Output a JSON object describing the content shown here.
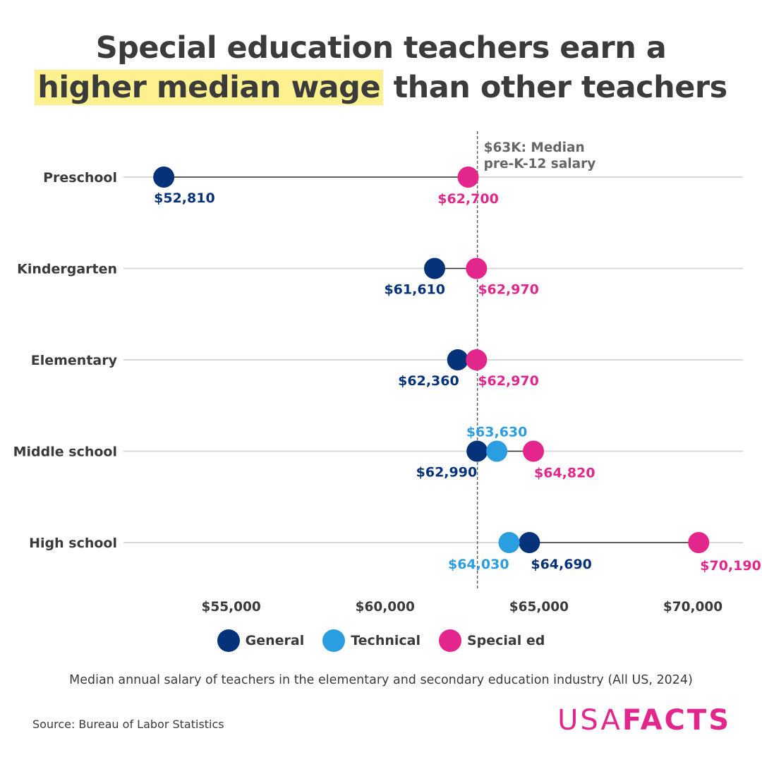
{
  "title": {
    "line1": "Special education teachers earn a",
    "highlight": "higher median wage",
    "rest": " than other teachers"
  },
  "colors": {
    "general": "#06327a",
    "technical": "#2a9ee0",
    "special": "#e2268b",
    "highlight": "#fdf08e"
  },
  "chart_data": {
    "type": "dumbbell",
    "categories": [
      "Preschool",
      "Kindergarten",
      "Elementary",
      "Middle school",
      "High school"
    ],
    "series": [
      {
        "name": "General",
        "values": [
          52810,
          61610,
          62360,
          62990,
          64690
        ]
      },
      {
        "name": "Technical",
        "values": [
          null,
          null,
          null,
          63630,
          64030
        ]
      },
      {
        "name": "Special ed",
        "values": [
          62700,
          62970,
          62970,
          64820,
          70190
        ]
      }
    ],
    "value_labels": {
      "General": [
        "$52,810",
        "$61,610",
        "$62,360",
        "$62,990",
        "$64,690"
      ],
      "Technical": [
        null,
        null,
        null,
        "$63,630",
        "$64,030"
      ],
      "Special ed": [
        "$62,700",
        "$62,970",
        "$62,970",
        "$64,820",
        "$70,190"
      ]
    },
    "x_ticks": [
      55000,
      60000,
      65000,
      70000
    ],
    "x_tick_labels": [
      "$55,000",
      "$60,000",
      "$65,000",
      "$70,000"
    ],
    "xlim": [
      51500,
      72000
    ],
    "reference_line": {
      "value": 63000,
      "label_line1": "$63K: Median",
      "label_line2": "pre-K-12 salary"
    },
    "grid": true,
    "legend_position": "bottom"
  },
  "legend": [
    "General",
    "Technical",
    "Special ed"
  ],
  "caption": "Median annual salary of teachers in the elementary and secondary education industry (All US, 2024)",
  "source": "Source: Bureau of Labor Statistics",
  "logo": {
    "part1": "USA",
    "part2": "FACTS"
  }
}
